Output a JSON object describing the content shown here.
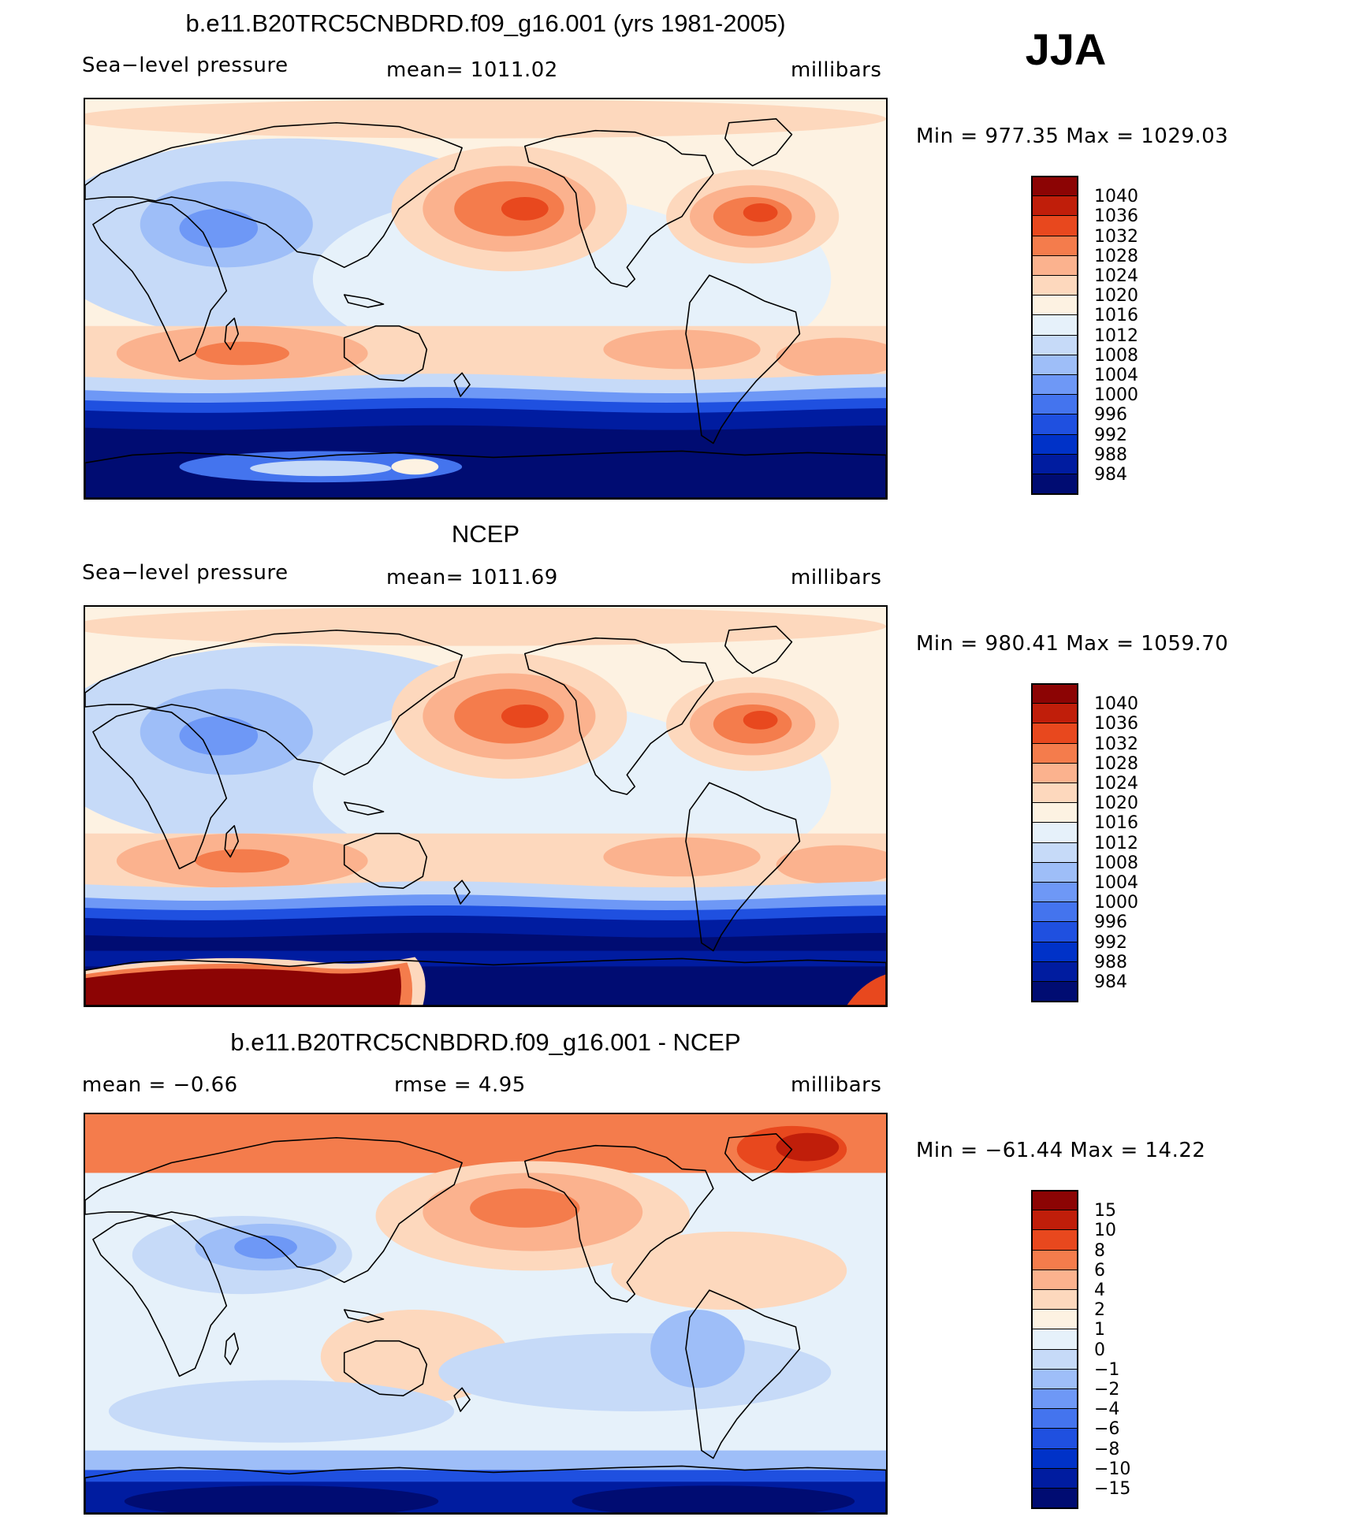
{
  "season": "JJA",
  "panels": [
    {
      "title": "b.e11.B20TRC5CNBDRD.f09_g16.001 (yrs 1981-2005)",
      "left": "Sea−level pressure",
      "center": "mean=  1011.02",
      "right": "millibars",
      "minmax": "Min  =  977.35  Max  =  1029.03",
      "colorbar_labels": [
        "1040",
        "1036",
        "1032",
        "1028",
        "1024",
        "1020",
        "1016",
        "1012",
        "1008",
        "1004",
        "1000",
        "996",
        "992",
        "988",
        "984"
      ],
      "field": "model"
    },
    {
      "title": "NCEP",
      "left": "Sea−level pressure",
      "center": "mean=  1011.69",
      "right": "millibars",
      "minmax": "Min  =  980.41  Max  =  1059.70",
      "colorbar_labels": [
        "1040",
        "1036",
        "1032",
        "1028",
        "1024",
        "1020",
        "1016",
        "1012",
        "1008",
        "1004",
        "1000",
        "996",
        "992",
        "988",
        "984"
      ],
      "field": "obs"
    },
    {
      "title": "b.e11.B20TRC5CNBDRD.f09_g16.001 - NCEP",
      "left": "mean  =    −0.66",
      "center": "rmse  =      4.95",
      "right": "millibars",
      "minmax": "Min  =  −61.44  Max  =    14.22",
      "colorbar_labels": [
        "15",
        "10",
        "8",
        "6",
        "4",
        "2",
        "1",
        "0",
        "−1",
        "−2",
        "−4",
        "−6",
        "−8",
        "−10",
        "−15"
      ],
      "field": "diff"
    }
  ],
  "colors": [
    "#000c72",
    "#001ca0",
    "#0032c8",
    "#1f50e0",
    "#4474ee",
    "#6e98f6",
    "#9ebef8",
    "#c6daf8",
    "#e6f1fa",
    "#fdf2e2",
    "#fdd8bd",
    "#fbb28e",
    "#f47c4c",
    "#e8481e",
    "#c01e0a",
    "#8c0404"
  ]
}
